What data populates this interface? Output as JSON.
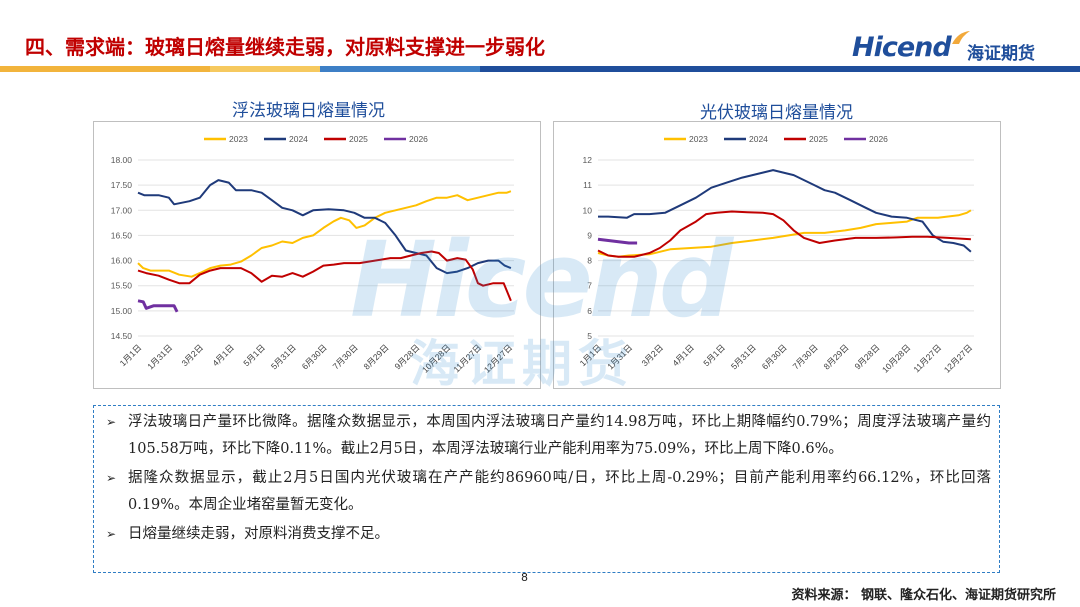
{
  "header": {
    "title": "四、需求端：玻璃日熔量继续走弱，对原料支撑进一步弱化",
    "logo_text": "Hicend",
    "logo_cn": "海证期货"
  },
  "colors": {
    "title_red": "#c00000",
    "brand_blue": "#1f4e9b",
    "band": [
      "#f2b43c",
      "#f6c95f",
      "#3d7fc6",
      "#1f4e9b"
    ],
    "s2023": "#ffc000",
    "s2024": "#1f3a7a",
    "s2025": "#c00000",
    "s2026": "#7030a0"
  },
  "chart_data": [
    {
      "type": "line",
      "title": "浮法玻璃日熔量情况",
      "x_ticks": [
        "1月1日",
        "1月31日",
        "3月2日",
        "4月1日",
        "5月1日",
        "5月31日",
        "6月30日",
        "7月30日",
        "8月29日",
        "9月28日",
        "10月28日",
        "11月27日",
        "12月27日"
      ],
      "yticks": [
        "18.00",
        "17.50",
        "17.00",
        "16.50",
        "16.00",
        "15.50",
        "15.00",
        "14.50"
      ],
      "ylim": [
        14.5,
        18.0
      ],
      "xlim": [
        0,
        365
      ],
      "grid": "horizontal",
      "legend": "top",
      "series": [
        {
          "name": "2023",
          "color": "#ffc000",
          "points": [
            [
              0,
              15.95
            ],
            [
              5,
              15.85
            ],
            [
              12,
              15.8
            ],
            [
              30,
              15.8
            ],
            [
              40,
              15.72
            ],
            [
              52,
              15.68
            ],
            [
              60,
              15.75
            ],
            [
              70,
              15.85
            ],
            [
              80,
              15.9
            ],
            [
              90,
              15.92
            ],
            [
              100,
              15.98
            ],
            [
              110,
              16.1
            ],
            [
              120,
              16.25
            ],
            [
              130,
              16.3
            ],
            [
              140,
              16.38
            ],
            [
              150,
              16.35
            ],
            [
              160,
              16.45
            ],
            [
              170,
              16.5
            ],
            [
              180,
              16.65
            ],
            [
              190,
              16.78
            ],
            [
              197,
              16.85
            ],
            [
              205,
              16.8
            ],
            [
              212,
              16.65
            ],
            [
              220,
              16.7
            ],
            [
              230,
              16.85
            ],
            [
              240,
              16.95
            ],
            [
              250,
              17.0
            ],
            [
              260,
              17.05
            ],
            [
              270,
              17.1
            ],
            [
              280,
              17.18
            ],
            [
              290,
              17.25
            ],
            [
              300,
              17.25
            ],
            [
              310,
              17.3
            ],
            [
              320,
              17.2
            ],
            [
              330,
              17.25
            ],
            [
              340,
              17.3
            ],
            [
              350,
              17.35
            ],
            [
              358,
              17.35
            ],
            [
              362,
              17.38
            ]
          ]
        },
        {
          "name": "2024",
          "color": "#1f3a7a",
          "points": [
            [
              0,
              17.35
            ],
            [
              6,
              17.3
            ],
            [
              20,
              17.3
            ],
            [
              30,
              17.25
            ],
            [
              35,
              17.12
            ],
            [
              50,
              17.18
            ],
            [
              60,
              17.25
            ],
            [
              70,
              17.5
            ],
            [
              78,
              17.6
            ],
            [
              88,
              17.55
            ],
            [
              95,
              17.4
            ],
            [
              110,
              17.4
            ],
            [
              120,
              17.35
            ],
            [
              130,
              17.2
            ],
            [
              140,
              17.05
            ],
            [
              150,
              17.0
            ],
            [
              160,
              16.9
            ],
            [
              170,
              17.0
            ],
            [
              185,
              17.02
            ],
            [
              200,
              17.0
            ],
            [
              210,
              16.95
            ],
            [
              220,
              16.85
            ],
            [
              230,
              16.85
            ],
            [
              240,
              16.75
            ],
            [
              250,
              16.5
            ],
            [
              260,
              16.2
            ],
            [
              270,
              16.15
            ],
            [
              280,
              16.1
            ],
            [
              290,
              15.85
            ],
            [
              300,
              15.75
            ],
            [
              310,
              15.78
            ],
            [
              320,
              15.85
            ],
            [
              330,
              15.95
            ],
            [
              340,
              16.0
            ],
            [
              350,
              16.0
            ],
            [
              356,
              15.9
            ],
            [
              362,
              15.85
            ]
          ]
        },
        {
          "name": "2025",
          "color": "#c00000",
          "points": [
            [
              0,
              15.8
            ],
            [
              8,
              15.75
            ],
            [
              20,
              15.7
            ],
            [
              30,
              15.62
            ],
            [
              40,
              15.55
            ],
            [
              50,
              15.55
            ],
            [
              60,
              15.72
            ],
            [
              70,
              15.8
            ],
            [
              80,
              15.85
            ],
            [
              100,
              15.85
            ],
            [
              110,
              15.75
            ],
            [
              120,
              15.58
            ],
            [
              130,
              15.7
            ],
            [
              140,
              15.68
            ],
            [
              150,
              15.75
            ],
            [
              160,
              15.68
            ],
            [
              170,
              15.78
            ],
            [
              180,
              15.9
            ],
            [
              190,
              15.92
            ],
            [
              200,
              15.95
            ],
            [
              215,
              15.95
            ],
            [
              230,
              16.0
            ],
            [
              245,
              16.05
            ],
            [
              255,
              16.05
            ],
            [
              265,
              16.1
            ],
            [
              275,
              16.15
            ],
            [
              285,
              16.18
            ],
            [
              292,
              16.15
            ],
            [
              300,
              16.0
            ],
            [
              310,
              16.05
            ],
            [
              318,
              16.02
            ],
            [
              325,
              15.82
            ],
            [
              330,
              15.55
            ],
            [
              335,
              15.5
            ],
            [
              345,
              15.55
            ],
            [
              355,
              15.55
            ],
            [
              362,
              15.2
            ]
          ]
        },
        {
          "name": "2026",
          "color": "#7030a0",
          "points": [
            [
              0,
              15.2
            ],
            [
              5,
              15.18
            ],
            [
              8,
              15.05
            ],
            [
              15,
              15.1
            ],
            [
              25,
              15.1
            ],
            [
              35,
              15.1
            ],
            [
              38,
              14.98
            ]
          ]
        }
      ]
    },
    {
      "type": "line",
      "title": "光伏玻璃日熔量情况",
      "x_ticks": [
        "1月1日",
        "1月31日",
        "3月2日",
        "4月1日",
        "5月1日",
        "5月31日",
        "6月30日",
        "7月30日",
        "8月29日",
        "9月28日",
        "10月28日",
        "11月27日",
        "12月27日"
      ],
      "yticks": [
        "12",
        "11",
        "10",
        "9",
        "8",
        "7",
        "6",
        "5"
      ],
      "ylim": [
        5,
        12
      ],
      "xlim": [
        0,
        365
      ],
      "grid": "horizontal",
      "legend": "top",
      "series": [
        {
          "name": "2023",
          "color": "#ffc000",
          "points": [
            [
              0,
              8.3
            ],
            [
              10,
              8.2
            ],
            [
              20,
              8.15
            ],
            [
              30,
              8.2
            ],
            [
              50,
              8.25
            ],
            [
              70,
              8.45
            ],
            [
              90,
              8.5
            ],
            [
              110,
              8.55
            ],
            [
              130,
              8.7
            ],
            [
              150,
              8.8
            ],
            [
              170,
              8.9
            ],
            [
              185,
              9.0
            ],
            [
              200,
              9.1
            ],
            [
              220,
              9.1
            ],
            [
              240,
              9.2
            ],
            [
              255,
              9.3
            ],
            [
              270,
              9.45
            ],
            [
              285,
              9.5
            ],
            [
              300,
              9.55
            ],
            [
              310,
              9.7
            ],
            [
              330,
              9.7
            ],
            [
              350,
              9.8
            ],
            [
              358,
              9.9
            ],
            [
              362,
              10.0
            ]
          ]
        },
        {
          "name": "2024",
          "color": "#1f3a7a",
          "points": [
            [
              0,
              9.75
            ],
            [
              10,
              9.75
            ],
            [
              20,
              9.72
            ],
            [
              28,
              9.7
            ],
            [
              35,
              9.85
            ],
            [
              50,
              9.85
            ],
            [
              65,
              9.9
            ],
            [
              80,
              10.2
            ],
            [
              95,
              10.5
            ],
            [
              110,
              10.9
            ],
            [
              125,
              11.1
            ],
            [
              140,
              11.3
            ],
            [
              150,
              11.4
            ],
            [
              160,
              11.5
            ],
            [
              170,
              11.6
            ],
            [
              180,
              11.5
            ],
            [
              190,
              11.4
            ],
            [
              200,
              11.2
            ],
            [
              210,
              11.0
            ],
            [
              220,
              10.8
            ],
            [
              230,
              10.7
            ],
            [
              245,
              10.4
            ],
            [
              260,
              10.1
            ],
            [
              270,
              9.9
            ],
            [
              285,
              9.75
            ],
            [
              300,
              9.7
            ],
            [
              315,
              9.55
            ],
            [
              325,
              9.0
            ],
            [
              335,
              8.75
            ],
            [
              345,
              8.7
            ],
            [
              355,
              8.6
            ],
            [
              362,
              8.35
            ]
          ]
        },
        {
          "name": "2025",
          "color": "#c00000",
          "points": [
            [
              0,
              8.4
            ],
            [
              10,
              8.2
            ],
            [
              20,
              8.15
            ],
            [
              35,
              8.15
            ],
            [
              50,
              8.3
            ],
            [
              60,
              8.5
            ],
            [
              70,
              8.8
            ],
            [
              80,
              9.2
            ],
            [
              95,
              9.55
            ],
            [
              105,
              9.85
            ],
            [
              115,
              9.9
            ],
            [
              130,
              9.95
            ],
            [
              145,
              9.92
            ],
            [
              160,
              9.9
            ],
            [
              170,
              9.85
            ],
            [
              180,
              9.6
            ],
            [
              190,
              9.2
            ],
            [
              200,
              8.9
            ],
            [
              215,
              8.7
            ],
            [
              230,
              8.8
            ],
            [
              250,
              8.9
            ],
            [
              270,
              8.9
            ],
            [
              290,
              8.92
            ],
            [
              305,
              8.95
            ],
            [
              320,
              8.95
            ],
            [
              340,
              8.9
            ],
            [
              362,
              8.85
            ]
          ]
        },
        {
          "name": "2026",
          "color": "#7030a0",
          "points": [
            [
              0,
              8.85
            ],
            [
              10,
              8.8
            ],
            [
              20,
              8.75
            ],
            [
              30,
              8.7
            ],
            [
              38,
              8.7
            ]
          ]
        }
      ]
    }
  ],
  "notes": [
    "浮法玻璃日产量环比微降。据隆众数据显示，本周国内浮法玻璃日产量约14.98万吨，环比上期降幅约0.79%；周度浮法玻璃产量约105.58万吨，环比下降0.11%。截止2月5日，本周浮法玻璃行业产能利用率为75.09%，环比上周下降0.6%。",
    "据隆众数据显示，截止2月5日国内光伏玻璃在产产能约86960吨/日，环比上周-0.29%；目前产能利用率约66.12%，环比回落0.19%。本周企业堵窑量暂无变化。",
    "日熔量继续走弱，对原料消费支撑不足。"
  ],
  "footer": {
    "page": "8",
    "source": "资料来源： 钢联、隆众石化、海证期货研究所"
  }
}
